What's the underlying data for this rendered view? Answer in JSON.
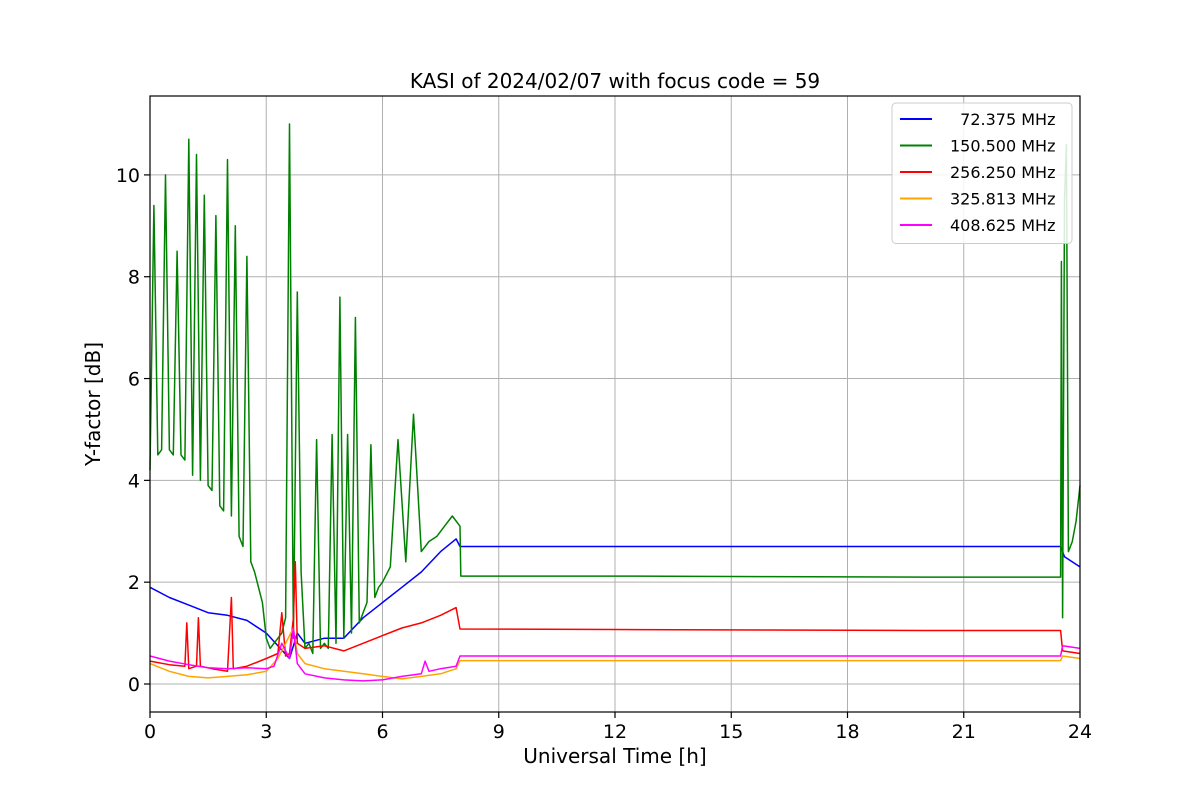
{
  "chart_data": {
    "type": "line",
    "title": "KASI of 2024/02/07 with focus code = 59",
    "xlabel": "Universal Time [h]",
    "ylabel": "Y-factor [dB]",
    "xlim": [
      0,
      24
    ],
    "ylim": [
      -0.55,
      11.55
    ],
    "xticks": [
      0,
      3,
      6,
      9,
      12,
      15,
      18,
      21,
      24
    ],
    "yticks": [
      0,
      2,
      4,
      6,
      8,
      10
    ],
    "grid": true,
    "legend_position": "top-right",
    "series": [
      {
        "name": "  72.375 MHz",
        "color": "#0000ff",
        "x": [
          0,
          0.5,
          1.0,
          1.5,
          2.0,
          2.5,
          3.0,
          3.3,
          3.6,
          3.8,
          4.0,
          4.5,
          5.0,
          5.5,
          6.0,
          6.5,
          7.0,
          7.5,
          7.9,
          8.0,
          12.0,
          16.0,
          20.0,
          23.5,
          23.6,
          24.0
        ],
        "y": [
          1.9,
          1.7,
          1.55,
          1.4,
          1.35,
          1.25,
          1.0,
          0.75,
          0.5,
          1.0,
          0.8,
          0.9,
          0.9,
          1.3,
          1.6,
          1.9,
          2.2,
          2.6,
          2.85,
          2.7,
          2.7,
          2.7,
          2.7,
          2.7,
          2.5,
          2.3
        ]
      },
      {
        "name": "150.500 MHz",
        "color": "#008000",
        "x": [
          0,
          0.1,
          0.2,
          0.3,
          0.4,
          0.5,
          0.6,
          0.7,
          0.8,
          0.9,
          1.0,
          1.1,
          1.2,
          1.3,
          1.4,
          1.5,
          1.6,
          1.7,
          1.8,
          1.9,
          2.0,
          2.1,
          2.2,
          2.3,
          2.4,
          2.5,
          2.6,
          2.7,
          2.8,
          2.9,
          3.0,
          3.1,
          3.2,
          3.3,
          3.4,
          3.5,
          3.6,
          3.7,
          3.8,
          3.9,
          4.0,
          4.1,
          4.2,
          4.3,
          4.4,
          4.5,
          4.6,
          4.7,
          4.8,
          4.9,
          5.0,
          5.1,
          5.2,
          5.3,
          5.4,
          5.5,
          5.6,
          5.7,
          5.8,
          5.9,
          6.0,
          6.2,
          6.4,
          6.6,
          6.8,
          7.0,
          7.2,
          7.4,
          7.6,
          7.8,
          8.0,
          8.02,
          12.0,
          16.0,
          20.0,
          23.5,
          23.52,
          23.55,
          23.6,
          23.65,
          23.7,
          23.8,
          23.9,
          24.0
        ],
        "y": [
          4.2,
          9.4,
          4.5,
          4.6,
          10.0,
          4.6,
          4.5,
          8.5,
          4.5,
          4.4,
          10.7,
          4.1,
          10.4,
          4.0,
          9.6,
          3.9,
          3.8,
          9.2,
          3.5,
          3.4,
          10.3,
          3.3,
          9.0,
          2.9,
          2.7,
          8.4,
          2.4,
          2.2,
          1.9,
          1.6,
          0.9,
          0.7,
          0.8,
          0.9,
          1.0,
          1.3,
          11.0,
          0.9,
          7.7,
          2.2,
          0.7,
          0.8,
          0.6,
          4.8,
          0.7,
          0.8,
          0.7,
          4.9,
          0.8,
          7.6,
          0.9,
          4.9,
          1.0,
          7.2,
          1.2,
          1.4,
          1.6,
          4.7,
          1.7,
          1.9,
          2.0,
          2.3,
          4.8,
          2.4,
          5.3,
          2.6,
          2.8,
          2.9,
          3.1,
          3.3,
          3.1,
          2.12,
          2.12,
          2.11,
          2.1,
          2.1,
          8.3,
          1.3,
          9.5,
          10.6,
          2.6,
          2.8,
          3.2,
          3.9
        ]
      },
      {
        "name": "256.250 MHz",
        "color": "#ff0000",
        "x": [
          0,
          0.5,
          0.9,
          0.95,
          1.0,
          1.2,
          1.25,
          1.3,
          1.6,
          2.0,
          2.1,
          2.15,
          2.5,
          3.0,
          3.3,
          3.4,
          3.5,
          3.6,
          3.7,
          3.75,
          3.8,
          4.0,
          4.5,
          5.0,
          5.5,
          6.0,
          6.5,
          7.0,
          7.5,
          7.9,
          8.0,
          12.0,
          16.0,
          20.0,
          23.5,
          23.55,
          24.0
        ],
        "y": [
          0.45,
          0.38,
          0.35,
          1.2,
          0.3,
          0.35,
          1.3,
          0.35,
          0.3,
          0.25,
          1.7,
          0.3,
          0.35,
          0.5,
          0.6,
          1.4,
          0.55,
          0.6,
          1.3,
          2.4,
          0.8,
          0.7,
          0.75,
          0.65,
          0.8,
          0.95,
          1.1,
          1.2,
          1.35,
          1.5,
          1.08,
          1.07,
          1.06,
          1.05,
          1.05,
          0.65,
          0.6
        ]
      },
      {
        "name": "325.813 MHz",
        "color": "#ffa500",
        "x": [
          0,
          0.5,
          1.0,
          1.5,
          2.0,
          2.5,
          3.0,
          3.3,
          3.5,
          3.7,
          3.8,
          4.0,
          4.5,
          5.0,
          5.5,
          6.0,
          6.5,
          7.0,
          7.5,
          7.9,
          8.0,
          12.0,
          16.0,
          20.0,
          23.5,
          23.55,
          24.0
        ],
        "y": [
          0.4,
          0.25,
          0.15,
          0.12,
          0.15,
          0.18,
          0.25,
          0.5,
          0.8,
          1.1,
          0.6,
          0.4,
          0.3,
          0.25,
          0.2,
          0.15,
          0.1,
          0.15,
          0.2,
          0.3,
          0.46,
          0.46,
          0.46,
          0.46,
          0.46,
          0.55,
          0.5
        ]
      },
      {
        "name": "408.625 MHz",
        "color": "#ff00ff",
        "x": [
          0,
          0.5,
          1.0,
          1.5,
          2.0,
          2.5,
          3.0,
          3.2,
          3.4,
          3.6,
          3.7,
          3.8,
          4.0,
          4.5,
          5.0,
          5.5,
          6.0,
          6.5,
          7.0,
          7.1,
          7.2,
          7.5,
          7.9,
          8.0,
          12.0,
          16.0,
          20.0,
          23.5,
          23.55,
          24.0
        ],
        "y": [
          0.55,
          0.45,
          0.38,
          0.32,
          0.3,
          0.32,
          0.3,
          0.35,
          0.8,
          0.5,
          1.1,
          0.4,
          0.2,
          0.12,
          0.08,
          0.06,
          0.08,
          0.15,
          0.2,
          0.45,
          0.25,
          0.3,
          0.35,
          0.55,
          0.55,
          0.55,
          0.55,
          0.55,
          0.75,
          0.7
        ]
      }
    ]
  }
}
